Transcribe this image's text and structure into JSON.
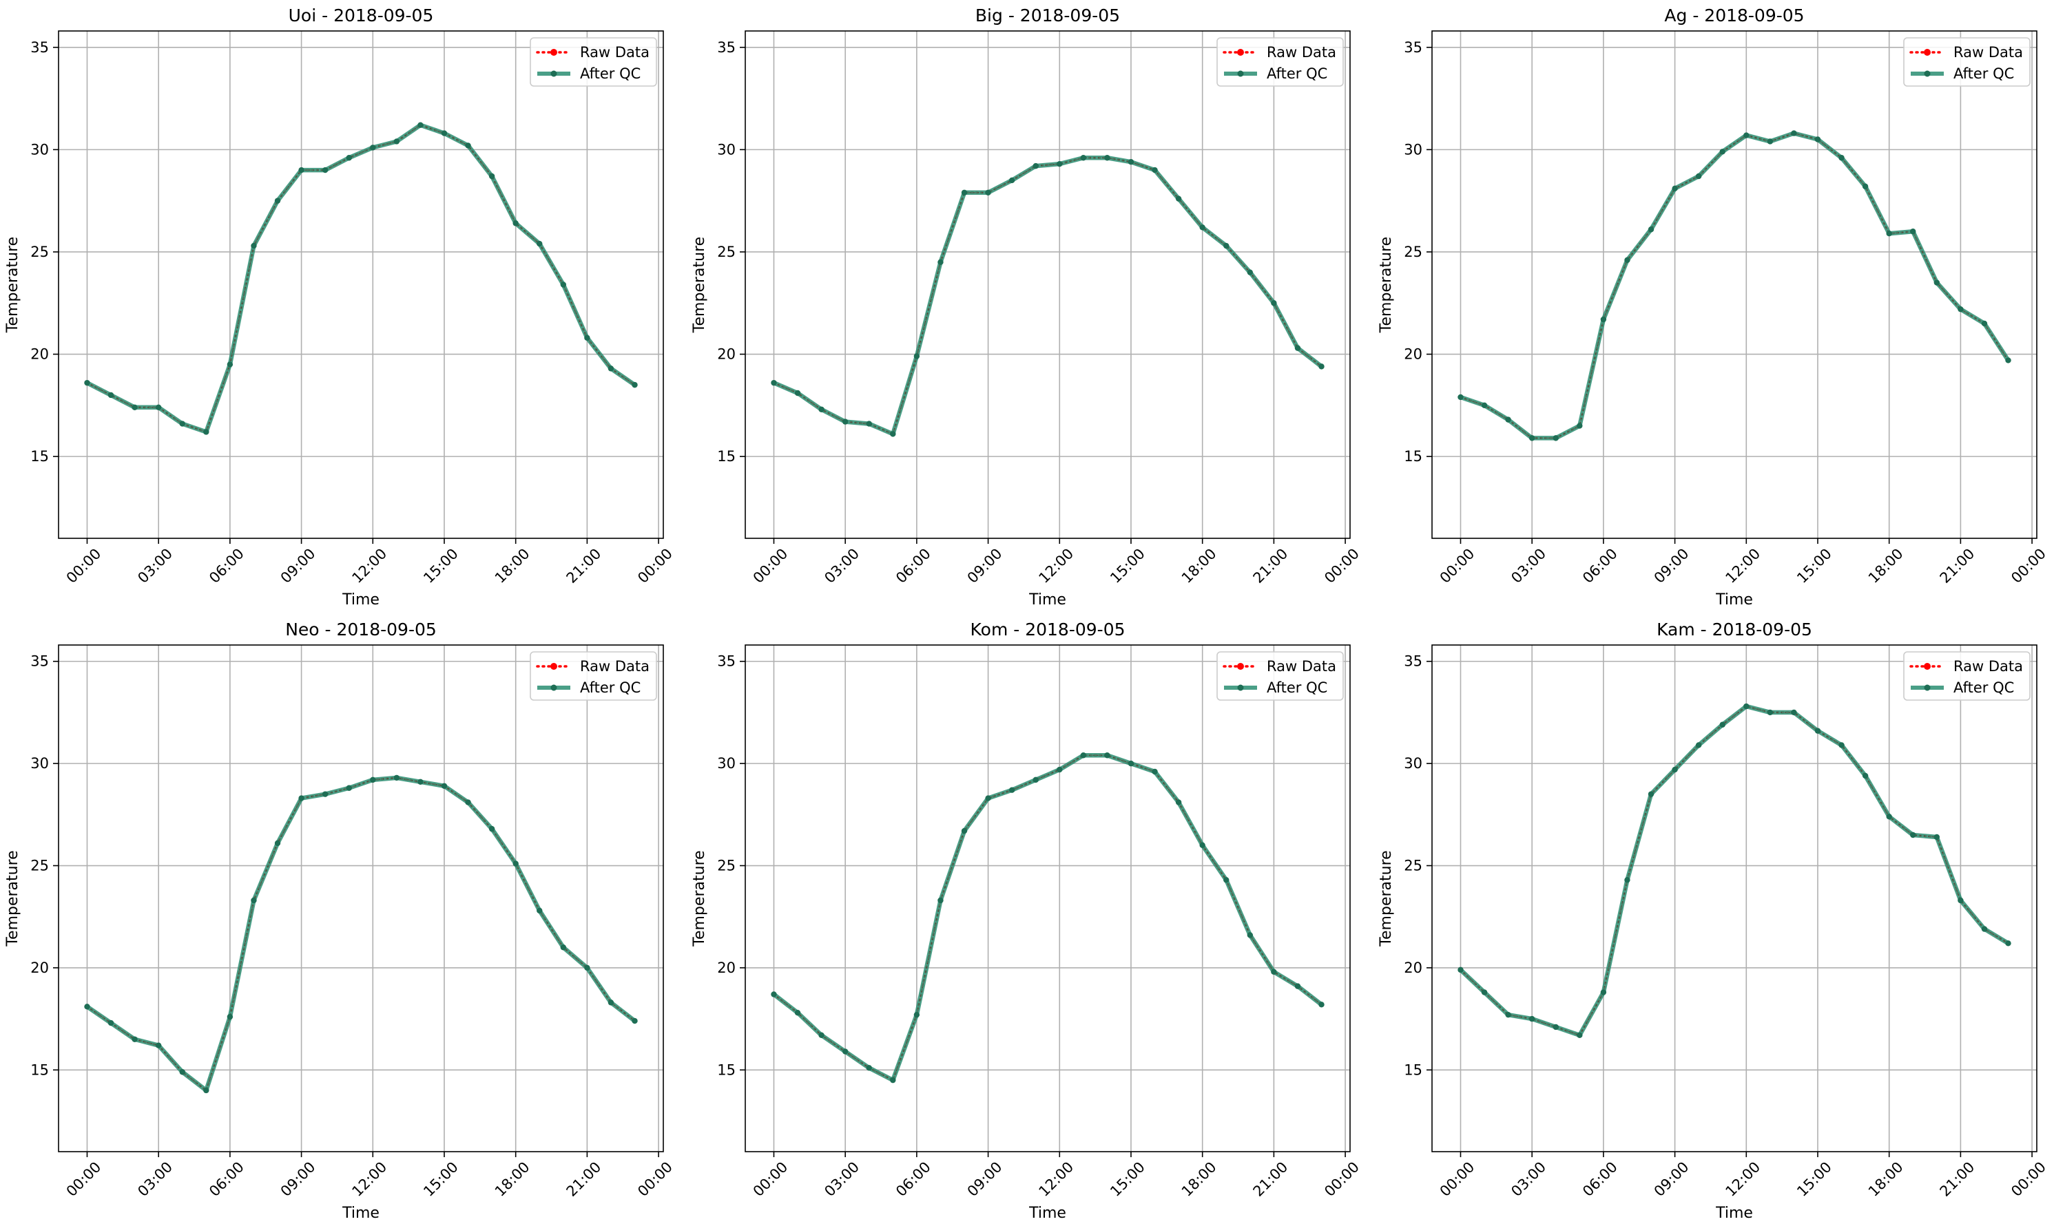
{
  "chart_data": [
    {
      "type": "line",
      "title": "Uoi - 2018-09-05",
      "xlabel": "Time",
      "ylabel": "Temperature",
      "xticks": [
        "00:00",
        "03:00",
        "06:00",
        "09:00",
        "12:00",
        "15:00",
        "18:00",
        "21:00",
        "00:00"
      ],
      "xlim": [
        -1.2,
        24.2
      ],
      "ylim": [
        11,
        35.8
      ],
      "yticks": [
        15,
        20,
        25,
        30,
        35
      ],
      "grid": true,
      "legend_position": "top-right",
      "hours": [
        0,
        1,
        2,
        3,
        4,
        5,
        6,
        7,
        8,
        9,
        10,
        11,
        12,
        13,
        14,
        15,
        16,
        17,
        18,
        19,
        20,
        21,
        22,
        23
      ],
      "series": [
        {
          "name": "Raw Data",
          "style": "dotted",
          "color": "#ff0000",
          "values": [
            18.6,
            18.0,
            17.4,
            17.4,
            16.6,
            16.2,
            19.5,
            25.3,
            27.5,
            29.0,
            29.0,
            29.6,
            30.1,
            30.4,
            31.2,
            30.8,
            30.2,
            28.7,
            26.4,
            25.4,
            23.4,
            20.8,
            19.3,
            18.5
          ]
        },
        {
          "name": "After QC",
          "style": "solid",
          "color": "#2a8e72",
          "values": [
            18.6,
            18.0,
            17.4,
            17.4,
            16.6,
            16.2,
            19.5,
            25.3,
            27.5,
            29.0,
            29.0,
            29.6,
            30.1,
            30.4,
            31.2,
            30.8,
            30.2,
            28.7,
            26.4,
            25.4,
            23.4,
            20.8,
            19.3,
            18.5
          ]
        }
      ]
    },
    {
      "type": "line",
      "title": "Big - 2018-09-05",
      "xlabel": "Time",
      "ylabel": "Temperature",
      "xticks": [
        "00:00",
        "03:00",
        "06:00",
        "09:00",
        "12:00",
        "15:00",
        "18:00",
        "21:00",
        "00:00"
      ],
      "xlim": [
        -1.2,
        24.2
      ],
      "ylim": [
        11,
        35.8
      ],
      "yticks": [
        15,
        20,
        25,
        30,
        35
      ],
      "grid": true,
      "legend_position": "top-right",
      "hours": [
        0,
        1,
        2,
        3,
        4,
        5,
        6,
        7,
        8,
        9,
        10,
        11,
        12,
        13,
        14,
        15,
        16,
        17,
        18,
        19,
        20,
        21,
        22,
        23
      ],
      "series": [
        {
          "name": "Raw Data",
          "style": "dotted",
          "color": "#ff0000",
          "values": [
            18.6,
            18.1,
            17.3,
            16.7,
            16.6,
            16.1,
            19.9,
            24.5,
            27.9,
            27.9,
            28.5,
            29.2,
            29.3,
            29.6,
            29.6,
            29.4,
            29.0,
            27.6,
            26.2,
            25.3,
            24.0,
            22.5,
            20.3,
            19.4
          ]
        },
        {
          "name": "After QC",
          "style": "solid",
          "color": "#2a8e72",
          "values": [
            18.6,
            18.1,
            17.3,
            16.7,
            16.6,
            16.1,
            19.9,
            24.5,
            27.9,
            27.9,
            28.5,
            29.2,
            29.3,
            29.6,
            29.6,
            29.4,
            29.0,
            27.6,
            26.2,
            25.3,
            24.0,
            22.5,
            20.3,
            19.4
          ]
        }
      ]
    },
    {
      "type": "line",
      "title": "Ag - 2018-09-05",
      "xlabel": "Time",
      "ylabel": "Temperature",
      "xticks": [
        "00:00",
        "03:00",
        "06:00",
        "09:00",
        "12:00",
        "15:00",
        "18:00",
        "21:00",
        "00:00"
      ],
      "xlim": [
        -1.2,
        24.2
      ],
      "ylim": [
        11,
        35.8
      ],
      "yticks": [
        15,
        20,
        25,
        30,
        35
      ],
      "grid": true,
      "legend_position": "top-right",
      "hours": [
        0,
        1,
        2,
        3,
        4,
        5,
        6,
        7,
        8,
        9,
        10,
        11,
        12,
        13,
        14,
        15,
        16,
        17,
        18,
        19,
        20,
        21,
        22,
        23
      ],
      "series": [
        {
          "name": "Raw Data",
          "style": "dotted",
          "color": "#ff0000",
          "values": [
            17.9,
            17.5,
            16.8,
            15.9,
            15.9,
            16.5,
            21.7,
            24.6,
            26.1,
            28.1,
            28.7,
            29.9,
            30.7,
            30.4,
            30.8,
            30.5,
            29.6,
            28.2,
            25.9,
            26.0,
            23.5,
            22.2,
            21.5,
            19.7
          ]
        },
        {
          "name": "After QC",
          "style": "solid",
          "color": "#2a8e72",
          "values": [
            17.9,
            17.5,
            16.8,
            15.9,
            15.9,
            16.5,
            21.7,
            24.6,
            26.1,
            28.1,
            28.7,
            29.9,
            30.7,
            30.4,
            30.8,
            30.5,
            29.6,
            28.2,
            25.9,
            26.0,
            23.5,
            22.2,
            21.5,
            19.7
          ]
        }
      ]
    },
    {
      "type": "line",
      "title": "Neo - 2018-09-05",
      "xlabel": "Time",
      "ylabel": "Temperature",
      "xticks": [
        "00:00",
        "03:00",
        "06:00",
        "09:00",
        "12:00",
        "15:00",
        "18:00",
        "21:00",
        "00:00"
      ],
      "xlim": [
        -1.2,
        24.2
      ],
      "ylim": [
        11,
        35.8
      ],
      "yticks": [
        15,
        20,
        25,
        30,
        35
      ],
      "grid": true,
      "legend_position": "top-right",
      "hours": [
        0,
        1,
        2,
        3,
        4,
        5,
        6,
        7,
        8,
        9,
        10,
        11,
        12,
        13,
        14,
        15,
        16,
        17,
        18,
        19,
        20,
        21,
        22,
        23
      ],
      "series": [
        {
          "name": "Raw Data",
          "style": "dotted",
          "color": "#ff0000",
          "values": [
            18.1,
            17.3,
            16.5,
            16.2,
            14.9,
            14.0,
            17.6,
            23.3,
            26.1,
            28.3,
            28.5,
            28.8,
            29.2,
            29.3,
            29.1,
            28.9,
            28.1,
            26.8,
            25.1,
            22.8,
            21.0,
            20.0,
            18.3,
            17.4
          ]
        },
        {
          "name": "After QC",
          "style": "solid",
          "color": "#2a8e72",
          "values": [
            18.1,
            17.3,
            16.5,
            16.2,
            14.9,
            14.0,
            17.6,
            23.3,
            26.1,
            28.3,
            28.5,
            28.8,
            29.2,
            29.3,
            29.1,
            28.9,
            28.1,
            26.8,
            25.1,
            22.8,
            21.0,
            20.0,
            18.3,
            17.4
          ]
        }
      ]
    },
    {
      "type": "line",
      "title": "Kom - 2018-09-05",
      "xlabel": "Time",
      "ylabel": "Temperature",
      "xticks": [
        "00:00",
        "03:00",
        "06:00",
        "09:00",
        "12:00",
        "15:00",
        "18:00",
        "21:00",
        "00:00"
      ],
      "xlim": [
        -1.2,
        24.2
      ],
      "ylim": [
        11,
        35.8
      ],
      "yticks": [
        15,
        20,
        25,
        30,
        35
      ],
      "grid": true,
      "legend_position": "top-right",
      "hours": [
        0,
        1,
        2,
        3,
        4,
        5,
        6,
        7,
        8,
        9,
        10,
        11,
        12,
        13,
        14,
        15,
        16,
        17,
        18,
        19,
        20,
        21,
        22,
        23
      ],
      "series": [
        {
          "name": "Raw Data",
          "style": "dotted",
          "color": "#ff0000",
          "values": [
            18.7,
            17.8,
            16.7,
            15.9,
            15.1,
            14.5,
            17.7,
            23.3,
            26.7,
            28.3,
            28.7,
            29.2,
            29.7,
            30.4,
            30.4,
            30.0,
            29.6,
            28.1,
            26.0,
            24.3,
            21.6,
            19.8,
            19.1,
            18.2
          ]
        },
        {
          "name": "After QC",
          "style": "solid",
          "color": "#2a8e72",
          "values": [
            18.7,
            17.8,
            16.7,
            15.9,
            15.1,
            14.5,
            17.7,
            23.3,
            26.7,
            28.3,
            28.7,
            29.2,
            29.7,
            30.4,
            30.4,
            30.0,
            29.6,
            28.1,
            26.0,
            24.3,
            21.6,
            19.8,
            19.1,
            18.2
          ]
        }
      ]
    },
    {
      "type": "line",
      "title": "Kam - 2018-09-05",
      "xlabel": "Time",
      "ylabel": "Temperature",
      "xticks": [
        "00:00",
        "03:00",
        "06:00",
        "09:00",
        "12:00",
        "15:00",
        "18:00",
        "21:00",
        "00:00"
      ],
      "xlim": [
        -1.2,
        24.2
      ],
      "ylim": [
        11,
        35.8
      ],
      "yticks": [
        15,
        20,
        25,
        30,
        35
      ],
      "grid": true,
      "legend_position": "top-right",
      "hours": [
        0,
        1,
        2,
        3,
        4,
        5,
        6,
        7,
        8,
        9,
        10,
        11,
        12,
        13,
        14,
        15,
        16,
        17,
        18,
        19,
        20,
        21,
        22,
        23
      ],
      "series": [
        {
          "name": "Raw Data",
          "style": "dotted",
          "color": "#ff0000",
          "values": [
            19.9,
            18.8,
            17.7,
            17.5,
            17.1,
            16.7,
            18.8,
            24.3,
            28.5,
            29.7,
            30.9,
            31.9,
            32.8,
            32.5,
            32.5,
            31.6,
            30.9,
            29.4,
            27.4,
            26.5,
            26.4,
            23.3,
            21.9,
            21.2
          ]
        },
        {
          "name": "After QC",
          "style": "solid",
          "color": "#2a8e72",
          "values": [
            19.9,
            18.8,
            17.7,
            17.5,
            17.1,
            16.7,
            18.8,
            24.3,
            28.5,
            29.7,
            30.9,
            31.9,
            32.8,
            32.5,
            32.5,
            31.6,
            30.9,
            29.4,
            27.4,
            26.5,
            26.4,
            23.3,
            21.9,
            21.2
          ]
        }
      ]
    }
  ]
}
